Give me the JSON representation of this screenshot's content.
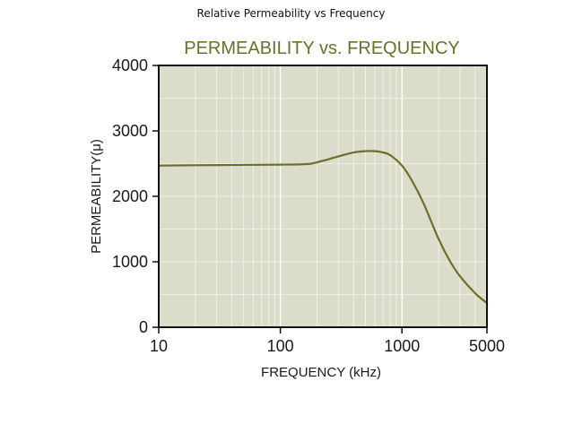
{
  "caption": "Relative Permeability vs Frequency",
  "colors": {
    "plot_background": "#dcdccb",
    "curve": "#6b6f2e",
    "title": "#6b6f2e",
    "gridline": "#ffffff",
    "frame": "#111111"
  },
  "chart_data": {
    "type": "line",
    "title": "PERMEABILITY vs. FREQUENCY",
    "xlabel": "FREQUENCY (kHz)",
    "ylabel": "PERMEABILITY(μ)",
    "x_scale": "log",
    "xlim": [
      10,
      5000
    ],
    "ylim": [
      0,
      4000
    ],
    "x_ticks": [
      10,
      100,
      1000,
      5000
    ],
    "x_tick_labels": [
      "10",
      "100",
      "1000",
      "5000"
    ],
    "y_ticks": [
      0,
      1000,
      2000,
      3000,
      4000
    ],
    "y_tick_labels": [
      "0",
      "1000",
      "2000",
      "3000",
      "4000"
    ],
    "grid": true,
    "series": [
      {
        "x": [
          10,
          20,
          50,
          100,
          150,
          180,
          220,
          300,
          400,
          500,
          600,
          700,
          800,
          1000,
          1200,
          1500,
          2000,
          2500,
          3000,
          4000,
          5000
        ],
        "y": [
          2470,
          2475,
          2480,
          2485,
          2490,
          2500,
          2540,
          2610,
          2670,
          2690,
          2690,
          2670,
          2630,
          2470,
          2250,
          1900,
          1350,
          1000,
          780,
          520,
          370
        ]
      }
    ]
  }
}
